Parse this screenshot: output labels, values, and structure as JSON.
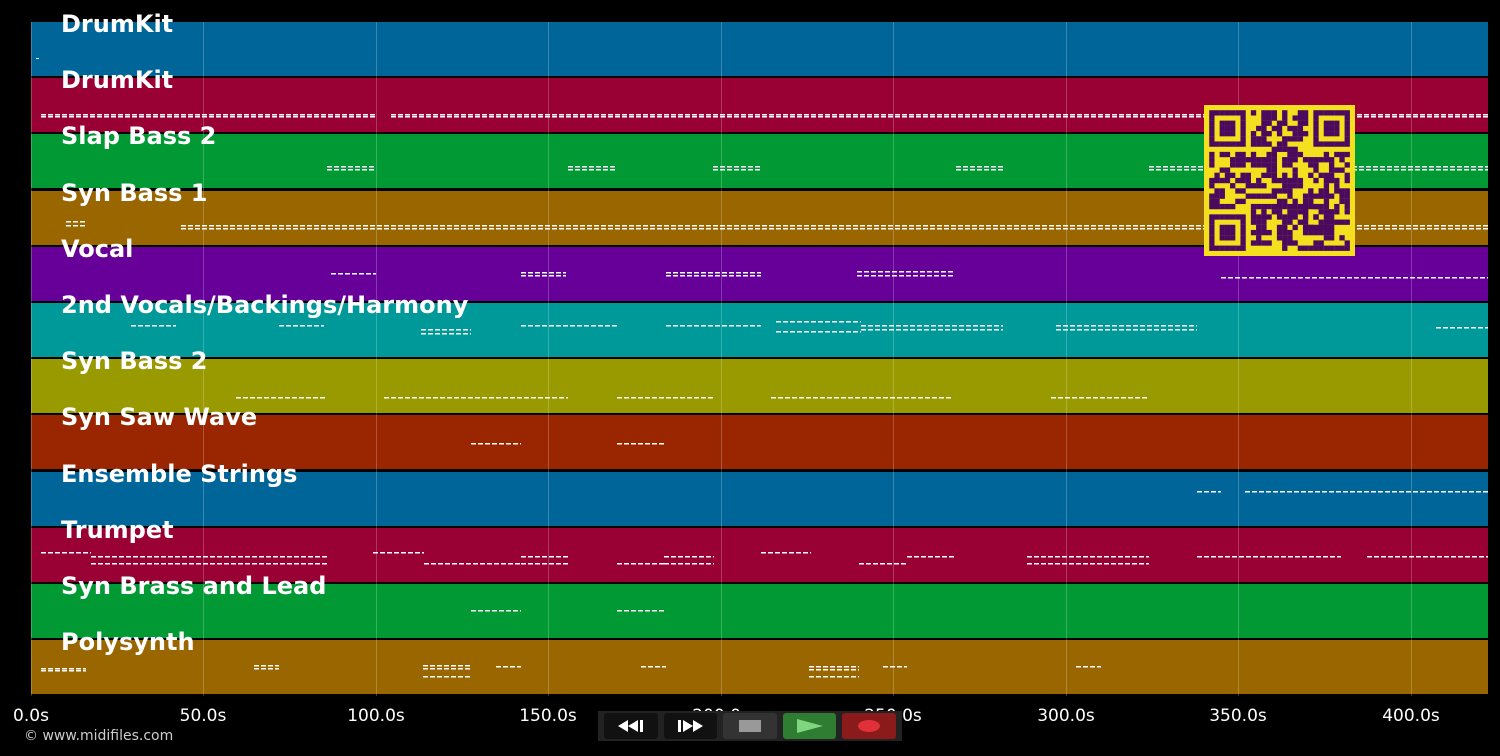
{
  "tracks": [
    {
      "name": "DrumKit",
      "color": "#006699"
    },
    {
      "name": "DrumKit",
      "color": "#990033"
    },
    {
      "name": "Slap Bass 2",
      "color": "#009933"
    },
    {
      "name": "Syn Bass 1",
      "color": "#996600"
    },
    {
      "name": "Vocal",
      "color": "#660099"
    },
    {
      "name": "2nd Vocals/Backings/Harmony",
      "color": "#009999"
    },
    {
      "name": "Syn Bass 2",
      "color": "#999900"
    },
    {
      "name": "Syn Saw Wave",
      "color": "#992600"
    },
    {
      "name": "Ensemble Strings",
      "color": "#006699"
    },
    {
      "name": "Trumpet",
      "color": "#990033"
    },
    {
      "name": "Syn Brass and Lead",
      "color": "#009933"
    },
    {
      "name": "Polysynth",
      "color": "#996600"
    }
  ],
  "timeline": {
    "ticks": [
      "0.0s",
      "50.0s",
      "100.0s",
      "150.0s",
      "200.0s",
      "250.0s",
      "300.0s",
      "350.0s",
      "400.0s"
    ]
  },
  "footer": {
    "copyright": "© www.midifiles.com"
  },
  "qr": {
    "fg": "#4a0a5e",
    "bg": "#f5e020"
  },
  "transport": {
    "buttons": [
      "rewind-icon",
      "fast-forward-icon",
      "stop-icon",
      "play-icon",
      "record-icon"
    ],
    "play_color": "#2e7d32",
    "record_color": "#8b1a1a"
  }
}
